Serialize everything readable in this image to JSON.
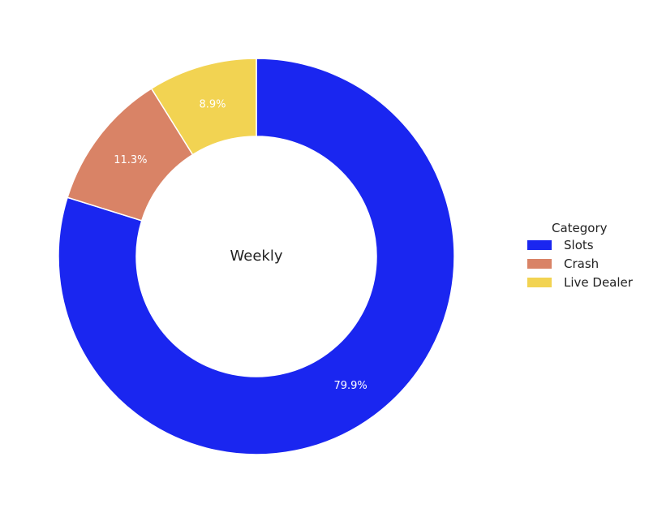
{
  "chart_data": {
    "type": "pie",
    "donut": true,
    "center_label": "Weekly",
    "legend_title": "Category",
    "legend_position": "right",
    "categories": [
      "Slots",
      "Crash",
      "Live Dealer"
    ],
    "values": [
      79.9,
      11.3,
      8.9
    ],
    "value_labels": [
      "79.9%",
      "11.3%",
      "8.9%"
    ],
    "colors": [
      "#1a26f0",
      "#d98366",
      "#f2d352"
    ],
    "start": "top",
    "direction": "clockwise"
  }
}
